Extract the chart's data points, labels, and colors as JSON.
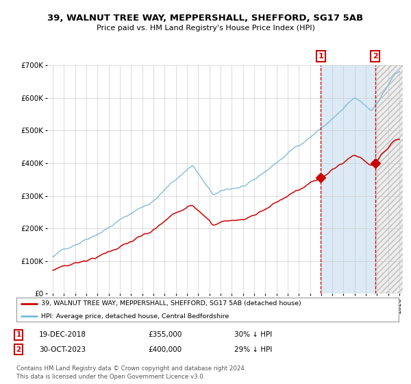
{
  "title": "39, WALNUT TREE WAY, MEPPERSHALL, SHEFFORD, SG17 5AB",
  "subtitle": "Price paid vs. HM Land Registry's House Price Index (HPI)",
  "ylim": [
    0,
    700000
  ],
  "yticks": [
    0,
    100000,
    200000,
    300000,
    400000,
    500000,
    600000,
    700000
  ],
  "ytick_labels": [
    "£0",
    "£100K",
    "£200K",
    "£300K",
    "£400K",
    "£500K",
    "£600K",
    "£700K"
  ],
  "sale1_date": 2018.96,
  "sale1_price": 355000,
  "sale1_label": "1",
  "sale2_date": 2023.83,
  "sale2_price": 400000,
  "sale2_label": "2",
  "hpi_color": "#7ab8d9",
  "price_color": "#cc0000",
  "shade_color": "#dbeaf5",
  "hatch_color": "#e8e8e8",
  "grid_color": "#cccccc",
  "bg_color": "#ffffff",
  "legend_label1": "39, WALNUT TREE WAY, MEPPERSHALL, SHEFFORD, SG17 5AB (detached house)",
  "legend_label2": "HPI: Average price, detached house, Central Bedfordshire",
  "table_row1": [
    "1",
    "19-DEC-2018",
    "£355,000",
    "30% ↓ HPI"
  ],
  "table_row2": [
    "2",
    "30-OCT-2023",
    "£400,000",
    "29% ↓ HPI"
  ],
  "footnote": "Contains HM Land Registry data © Crown copyright and database right 2024.\nThis data is licensed under the Open Government Licence v3.0.",
  "xstart": 1995,
  "xend": 2026
}
